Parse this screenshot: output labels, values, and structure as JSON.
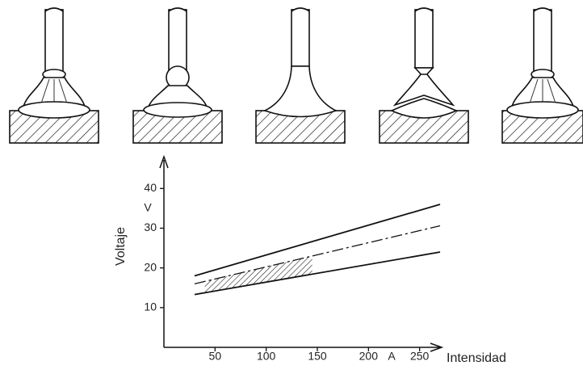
{
  "chart_data": {
    "type": "line",
    "x_label": "Intensidad",
    "y_label": "Voltaje",
    "x_unit": "A",
    "y_unit": "V",
    "x": [
      30,
      270
    ],
    "series": [
      {
        "values": [
          18,
          36
        ],
        "color": "#111111",
        "style": "solid"
      },
      {
        "values": [
          16,
          30.6
        ],
        "color": "#111111",
        "style": "dashdot"
      },
      {
        "values": [
          13.3,
          24
        ],
        "color": "#111111",
        "style": "solid"
      }
    ],
    "hatched_region": {
      "x": [
        40,
        145
      ],
      "between": [
        2,
        1
      ]
    },
    "xlim": [
      0,
      270
    ],
    "ylim": [
      0,
      48
    ],
    "xticks": [
      50,
      100,
      150,
      200,
      250
    ],
    "yticks": [
      10,
      20,
      30,
      40
    ]
  }
}
